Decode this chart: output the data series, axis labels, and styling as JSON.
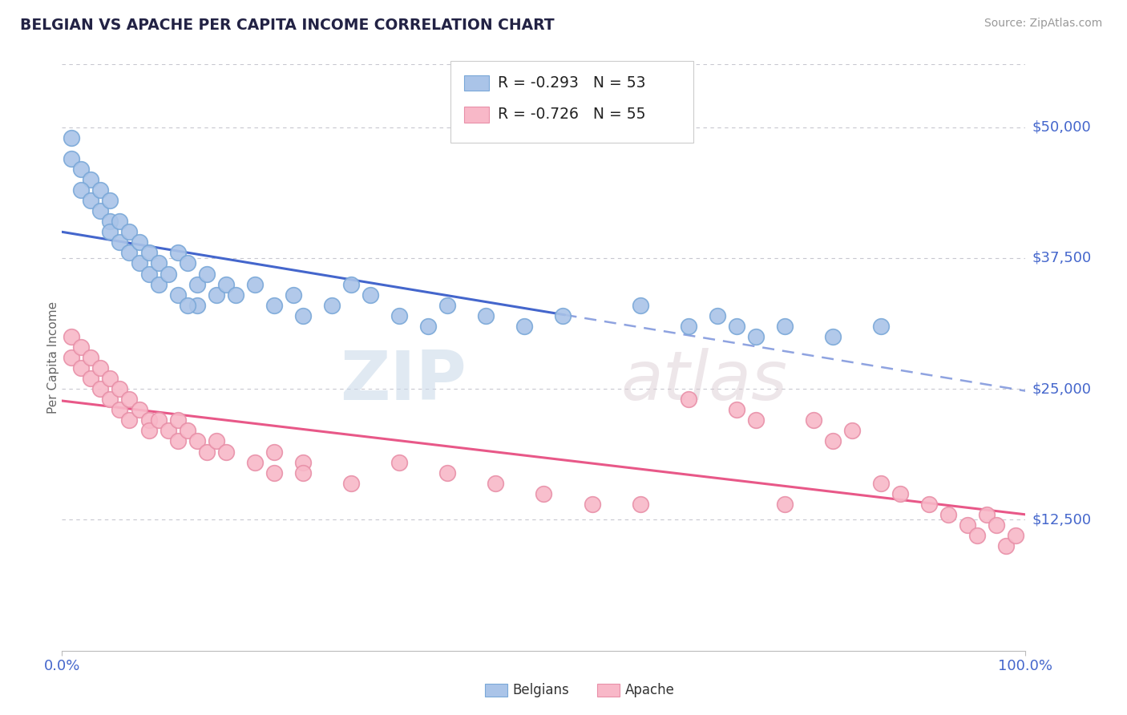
{
  "title": "BELGIAN VS APACHE PER CAPITA INCOME CORRELATION CHART",
  "source_text": "Source: ZipAtlas.com",
  "ylabel": "Per Capita Income",
  "xlim": [
    0.0,
    1.0
  ],
  "ylim": [
    0,
    56000
  ],
  "ytick_values": [
    12500,
    25000,
    37500,
    50000
  ],
  "ytick_labels": [
    "$12,500",
    "$25,000",
    "$37,500",
    "$50,000"
  ],
  "background_color": "#ffffff",
  "grid_color": "#c8c8d0",
  "watermark_zip": "ZIP",
  "watermark_atlas": "atlas",
  "blue_dot_color": "#aac4e8",
  "blue_dot_edge": "#7aa8d8",
  "pink_dot_color": "#f8b8c8",
  "pink_dot_edge": "#e890a8",
  "blue_line_color": "#4466cc",
  "pink_line_color": "#e85888",
  "title_color": "#222244",
  "axis_tick_color": "#4466cc",
  "legend_R_belgian": "-0.293",
  "legend_N_belgian": "53",
  "legend_R_apache": "-0.726",
  "legend_N_apache": "55",
  "belgian_x": [
    0.01,
    0.01,
    0.02,
    0.03,
    0.02,
    0.03,
    0.04,
    0.04,
    0.05,
    0.05,
    0.05,
    0.06,
    0.06,
    0.07,
    0.07,
    0.08,
    0.08,
    0.09,
    0.09,
    0.1,
    0.1,
    0.11,
    0.12,
    0.13,
    0.14,
    0.15,
    0.14,
    0.16,
    0.17,
    0.12,
    0.13,
    0.18,
    0.2,
    0.22,
    0.24,
    0.25,
    0.28,
    0.3,
    0.32,
    0.35,
    0.38,
    0.4,
    0.44,
    0.48,
    0.52,
    0.6,
    0.65,
    0.68,
    0.7,
    0.72,
    0.75,
    0.8,
    0.85
  ],
  "belgian_y": [
    49000,
    47000,
    46000,
    45000,
    44000,
    43000,
    44000,
    42000,
    41000,
    40000,
    43000,
    39000,
    41000,
    40000,
    38000,
    39000,
    37000,
    38000,
    36000,
    37000,
    35000,
    36000,
    38000,
    37000,
    35000,
    36000,
    33000,
    34000,
    35000,
    34000,
    33000,
    34000,
    35000,
    33000,
    34000,
    32000,
    33000,
    35000,
    34000,
    32000,
    31000,
    33000,
    32000,
    31000,
    32000,
    33000,
    31000,
    32000,
    31000,
    30000,
    31000,
    30000,
    31000
  ],
  "apache_x": [
    0.01,
    0.01,
    0.02,
    0.02,
    0.03,
    0.03,
    0.04,
    0.04,
    0.05,
    0.05,
    0.06,
    0.06,
    0.07,
    0.07,
    0.08,
    0.09,
    0.09,
    0.1,
    0.11,
    0.12,
    0.12,
    0.13,
    0.14,
    0.15,
    0.16,
    0.17,
    0.2,
    0.22,
    0.25,
    0.22,
    0.25,
    0.3,
    0.35,
    0.4,
    0.45,
    0.5,
    0.55,
    0.6,
    0.65,
    0.7,
    0.72,
    0.75,
    0.78,
    0.8,
    0.82,
    0.85,
    0.87,
    0.9,
    0.92,
    0.94,
    0.95,
    0.96,
    0.97,
    0.98,
    0.99
  ],
  "apache_y": [
    30000,
    28000,
    29000,
    27000,
    28000,
    26000,
    27000,
    25000,
    26000,
    24000,
    25000,
    23000,
    24000,
    22000,
    23000,
    22000,
    21000,
    22000,
    21000,
    22000,
    20000,
    21000,
    20000,
    19000,
    20000,
    19000,
    18000,
    19000,
    18000,
    17000,
    17000,
    16000,
    18000,
    17000,
    16000,
    15000,
    14000,
    14000,
    24000,
    23000,
    22000,
    14000,
    22000,
    20000,
    21000,
    16000,
    15000,
    14000,
    13000,
    12000,
    11000,
    13000,
    12000,
    10000,
    11000
  ]
}
